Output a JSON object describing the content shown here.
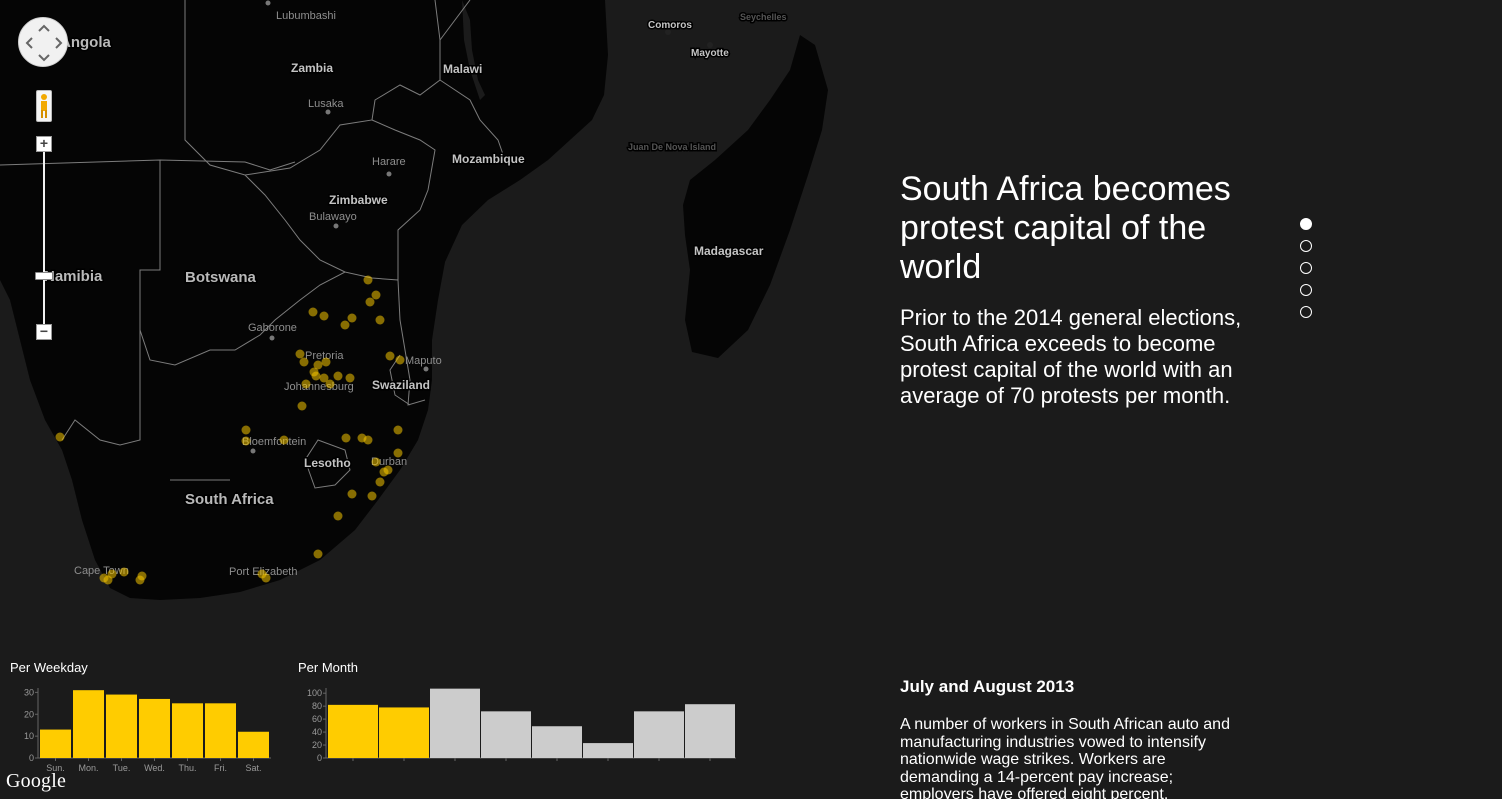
{
  "map": {
    "places": [
      {
        "name": "Lubumbashi"
      },
      {
        "name": "Lusaka"
      },
      {
        "name": "Harare"
      },
      {
        "name": "Bulawayo"
      },
      {
        "name": "Gaborone"
      },
      {
        "name": "Pretoria"
      },
      {
        "name": "Johannesburg"
      },
      {
        "name": "Maputo"
      },
      {
        "name": "Bloemfontein"
      },
      {
        "name": "Durban"
      },
      {
        "name": "Cape Town"
      },
      {
        "name": "Port Elizabeth"
      },
      {
        "name": "Comoros"
      },
      {
        "name": "Mayotte"
      },
      {
        "name": "Seychelles"
      },
      {
        "name": "Juan De Nova Island"
      }
    ],
    "countries": [
      "Angola",
      "Zambia",
      "Malawi",
      "Mozambique",
      "Zimbabwe",
      "Namibia",
      "Botswana",
      "Swaziland",
      "Lesotho",
      "South Africa",
      "Madagascar"
    ],
    "attribution": "Google",
    "dot_color": "#f4c400"
  },
  "controls": {
    "pan_icon": "pan-arrows-icon",
    "pegman_icon": "street-view-pegman-icon",
    "zoom_in_label": "+",
    "zoom_out_label": "−",
    "zoom_level_fraction": 0.72
  },
  "story": {
    "title": "South Africa becomes protest capital of the world",
    "intro": "Prior to the 2014 general elections, South Africa exceeds to become protest capital of the world with an average of 70 protests per month.",
    "pager": {
      "count": 5,
      "active": 0
    },
    "section_heading": "July and August 2013",
    "section_body": "A number of workers in South African auto and manufacturing industries vowed to intensify nationwide wage strikes. Workers are demanding a 14-percent pay increase; employers have offered eight percent."
  },
  "chart_data": [
    {
      "type": "bar",
      "title": "Per Weekday",
      "categories": [
        "Sun.",
        "Mon.",
        "Tue.",
        "Wed.",
        "Thu.",
        "Fri.",
        "Sat."
      ],
      "values": [
        13,
        31,
        29,
        27,
        25,
        25,
        12
      ],
      "highlight": [
        true,
        true,
        true,
        true,
        true,
        true,
        true
      ],
      "yticks": [
        0,
        10,
        20,
        30
      ],
      "ylim": [
        0,
        32
      ],
      "colors": {
        "highlight": "#ffcc00",
        "normal": "#cccccc"
      }
    },
    {
      "type": "bar",
      "title": "Per Month",
      "categories": [
        "",
        "",
        "",
        "",
        "",
        "",
        "",
        ""
      ],
      "values": [
        82,
        78,
        107,
        72,
        49,
        23,
        72,
        83
      ],
      "highlight": [
        true,
        true,
        false,
        false,
        false,
        false,
        false,
        false
      ],
      "yticks": [
        0,
        20,
        40,
        60,
        80,
        100
      ],
      "ylim": [
        0,
        108
      ],
      "colors": {
        "highlight": "#ffcc00",
        "normal": "#cccccc"
      }
    }
  ]
}
